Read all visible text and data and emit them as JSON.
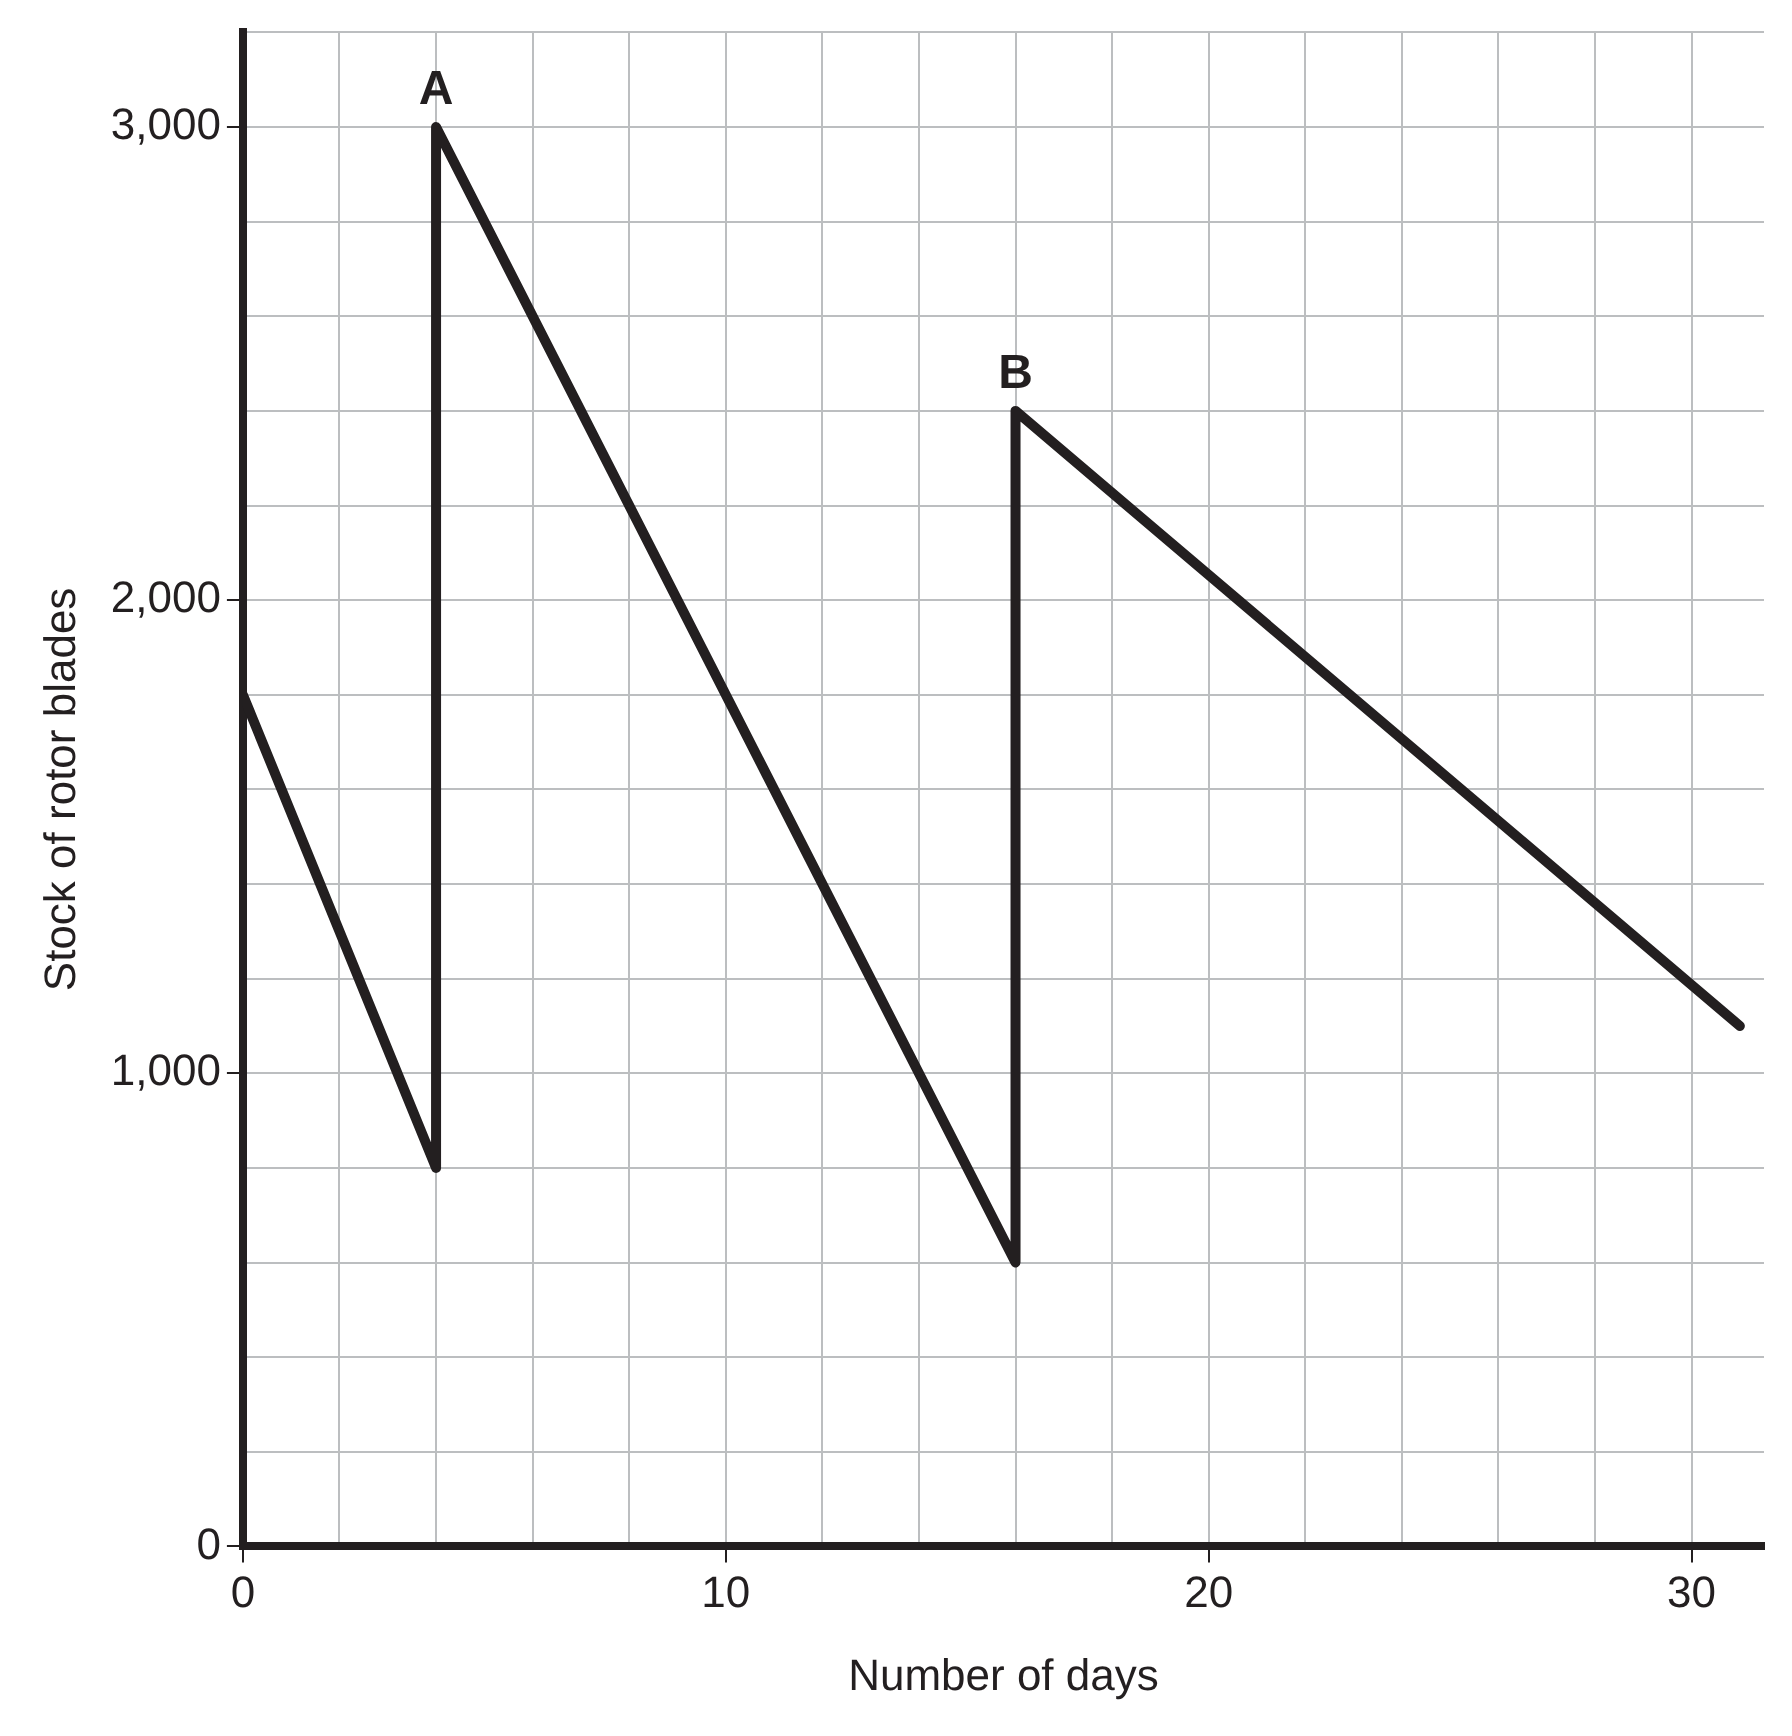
{
  "chart_data": {
    "type": "line",
    "xlabel": "Number of days",
    "ylabel": "Stock of rotor blades",
    "x": [
      0,
      4,
      4,
      16,
      16,
      31
    ],
    "series": [
      {
        "color": "#231f20",
        "values": [
          1800,
          800,
          3000,
          600,
          2400,
          1100
        ]
      }
    ],
    "xlim": [
      0,
      31.5
    ],
    "xticks": [
      0,
      {
        "value": 2,
        "label": null
      },
      {
        "value": 4,
        "label": null
      },
      {
        "value": 6,
        "label": null
      },
      {
        "value": 8,
        "label": null
      },
      10,
      {
        "value": 12,
        "label": null
      },
      {
        "value": 14,
        "label": null
      },
      {
        "value": 16,
        "label": null
      },
      {
        "value": 18,
        "label": null
      },
      20,
      {
        "value": 22,
        "label": null
      },
      {
        "value": 24,
        "label": null
      },
      {
        "value": 26,
        "label": null
      },
      {
        "value": 28,
        "label": null
      },
      30
    ],
    "ylim": [
      0,
      3200
    ],
    "yticks": [
      0,
      {
        "value": 200,
        "label": null
      },
      {
        "value": 400,
        "label": null
      },
      {
        "value": 600,
        "label": null
      },
      {
        "value": 800,
        "label": null
      },
      {
        "value": 1000,
        "label": "1,000"
      },
      {
        "value": 1200,
        "label": null
      },
      {
        "value": 1400,
        "label": null
      },
      {
        "value": 1600,
        "label": null
      },
      {
        "value": 1800,
        "label": null
      },
      {
        "value": 2000,
        "label": "2,000"
      },
      {
        "value": 2200,
        "label": null
      },
      {
        "value": 2400,
        "label": null
      },
      {
        "value": 2600,
        "label": null
      },
      {
        "value": 2800,
        "label": null
      },
      {
        "value": 3000,
        "label": "3,000"
      },
      {
        "value": 3200,
        "label": null
      }
    ],
    "grid": true,
    "legend": false,
    "marker": "none",
    "line_style": "solid",
    "annotations": [
      {
        "text": "A",
        "x": 4,
        "y": 3000
      },
      {
        "text": "B",
        "x": 16,
        "y": 2400
      }
    ]
  }
}
